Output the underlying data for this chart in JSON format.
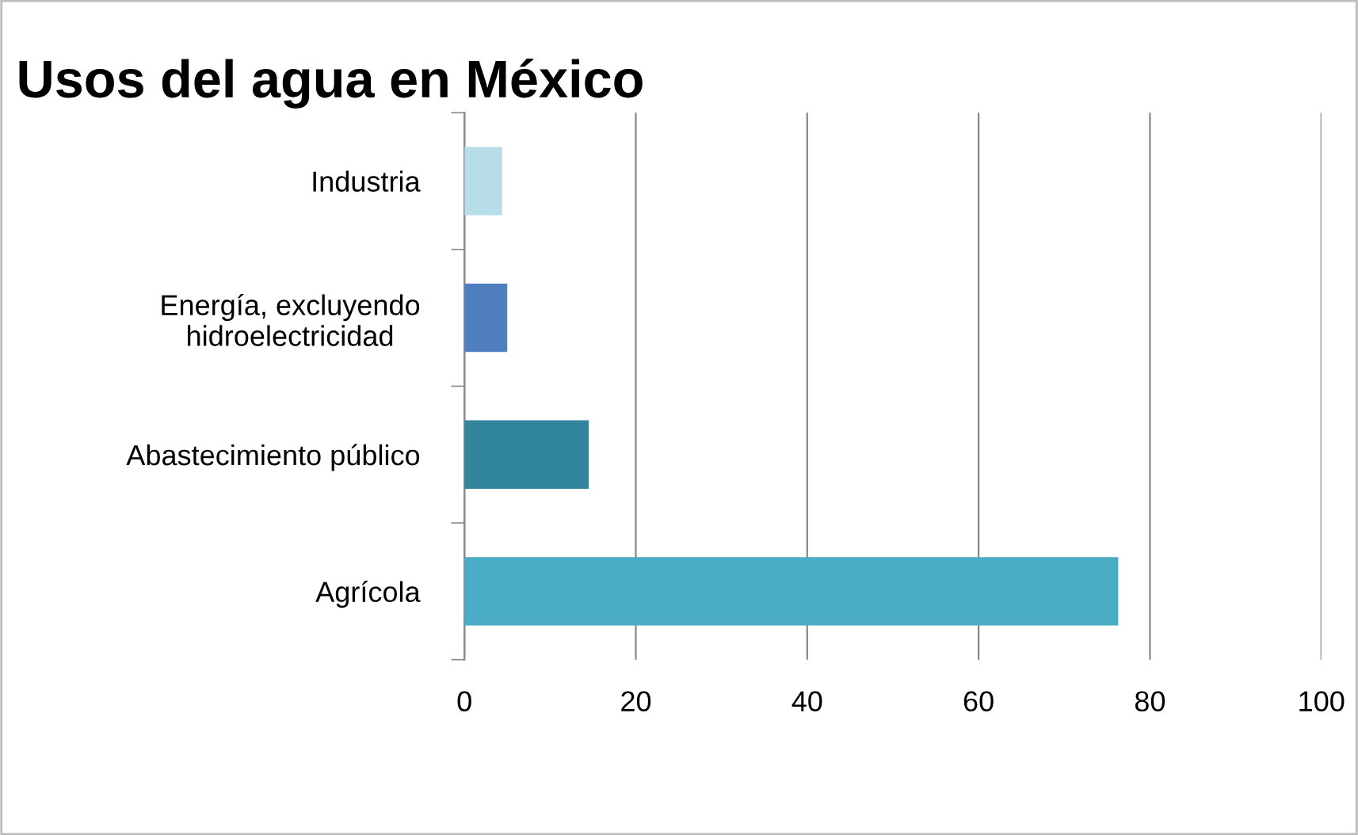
{
  "chart_data": {
    "type": "bar",
    "orientation": "horizontal",
    "title": "Usos del agua en México",
    "categories": [
      "Industria",
      "Energía, excluyendo\nhidroelectricidad",
      "Abastecimiento público",
      "Agrícola"
    ],
    "values": [
      4.4,
      5,
      14.5,
      76.3
    ],
    "colors": [
      "#b7dde8",
      "#4f7fc0",
      "#31859c",
      "#4bacc6"
    ],
    "xlim": [
      0,
      100
    ],
    "xticks": [
      0,
      20,
      40,
      60,
      80,
      100
    ],
    "grid": "x"
  }
}
